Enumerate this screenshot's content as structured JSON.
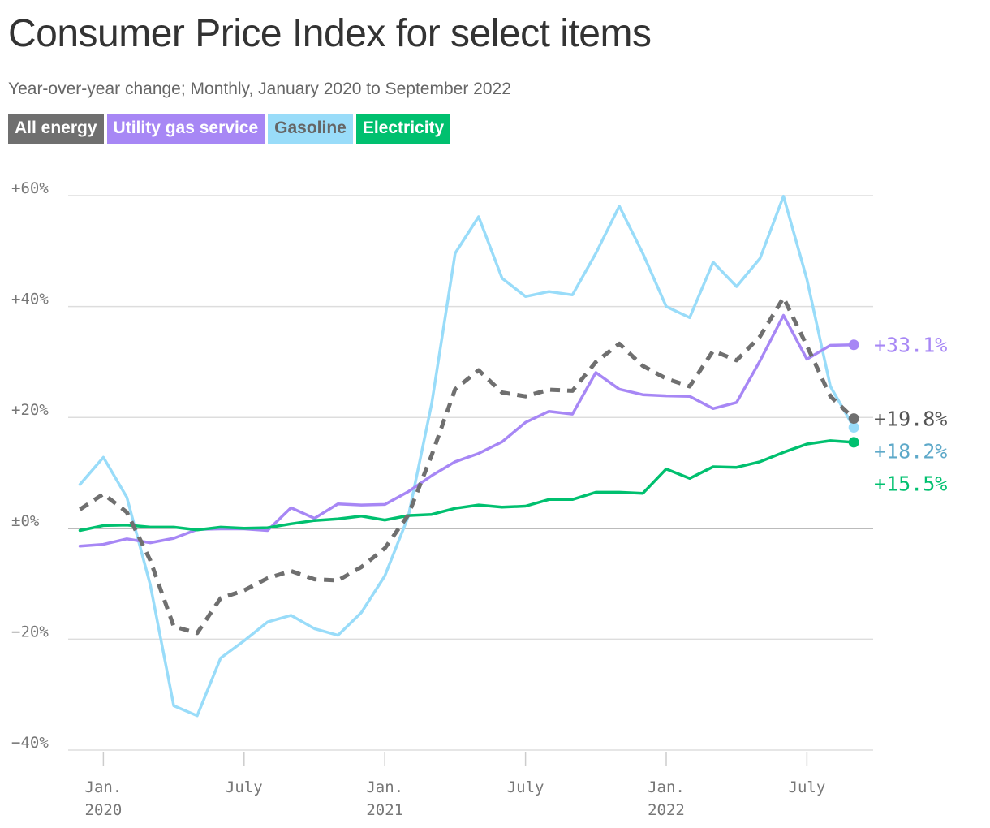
{
  "title": "Consumer Price Index for select items",
  "subtitle": "Year-over-year change; Monthly, January 2020 to September 2022",
  "legend": [
    {
      "label": "All energy",
      "bg": "#6f6f6f",
      "fg": "#ffffff"
    },
    {
      "label": "Utility gas service",
      "bg": "#a787f5",
      "fg": "#ffffff"
    },
    {
      "label": "Gasoline",
      "bg": "#99dcf9",
      "fg": "#666666"
    },
    {
      "label": "Electricity",
      "bg": "#00c06f",
      "fg": "#ffffff"
    }
  ],
  "chart_data": {
    "type": "line",
    "title": "Consumer Price Index for select items",
    "subtitle": "Year-over-year change; Monthly, January 2020 to September 2022",
    "x": [
      "2019-12",
      "2020-01",
      "2020-02",
      "2020-03",
      "2020-04",
      "2020-05",
      "2020-06",
      "2020-07",
      "2020-08",
      "2020-09",
      "2020-10",
      "2020-11",
      "2020-12",
      "2021-01",
      "2021-02",
      "2021-03",
      "2021-04",
      "2021-05",
      "2021-06",
      "2021-07",
      "2021-08",
      "2021-09",
      "2021-10",
      "2021-11",
      "2021-12",
      "2022-01",
      "2022-02",
      "2022-03",
      "2022-04",
      "2022-05",
      "2022-06",
      "2022-07",
      "2022-08",
      "2022-09"
    ],
    "x_ticks": [
      {
        "x": "2020-01",
        "line1": "Jan.",
        "line2": "2020"
      },
      {
        "x": "2020-07",
        "line1": "July",
        "line2": ""
      },
      {
        "x": "2021-01",
        "line1": "Jan.",
        "line2": "2021"
      },
      {
        "x": "2021-07",
        "line1": "July",
        "line2": ""
      },
      {
        "x": "2022-01",
        "line1": "Jan.",
        "line2": "2022"
      },
      {
        "x": "2022-07",
        "line1": "July",
        "line2": ""
      }
    ],
    "y_ticks": [
      {
        "value": 60,
        "label": "+60%"
      },
      {
        "value": 40,
        "label": "+40%"
      },
      {
        "value": 20,
        "label": "+20%"
      },
      {
        "value": 0,
        "label": "±0%"
      },
      {
        "value": -20,
        "label": "−20%"
      },
      {
        "value": -40,
        "label": "−40%"
      }
    ],
    "ylim": [
      -40,
      60
    ],
    "grid": true,
    "series": [
      {
        "name": "Gasoline",
        "color": "#99dcf9",
        "label_color": "#5ea9c9",
        "dashed": false,
        "end_label": "+18.2%",
        "values": [
          7.9,
          12.8,
          5.6,
          -10.2,
          -32.0,
          -33.8,
          -23.4,
          -20.3,
          -16.9,
          -15.7,
          -18.1,
          -19.3,
          -15.2,
          -8.6,
          2.1,
          22.5,
          49.6,
          56.2,
          45.1,
          41.8,
          42.7,
          42.1,
          49.6,
          58.1,
          49.6,
          40.0,
          38.0,
          48.0,
          43.6,
          48.7,
          59.9,
          44.9,
          25.6,
          18.2
        ]
      },
      {
        "name": "Utility gas service",
        "color": "#a787f5",
        "label_color": "#a787f5",
        "dashed": false,
        "end_label": "+33.1%",
        "values": [
          -3.2,
          -2.9,
          -1.9,
          -2.6,
          -1.8,
          -0.2,
          -0.1,
          -0.1,
          -0.4,
          3.7,
          1.8,
          4.4,
          4.2,
          4.3,
          6.6,
          9.5,
          12.0,
          13.5,
          15.6,
          19.1,
          21.1,
          20.6,
          28.1,
          25.1,
          24.1,
          23.9,
          23.8,
          21.6,
          22.7,
          30.2,
          38.4,
          30.5,
          33.0,
          33.1
        ]
      },
      {
        "name": "Electricity",
        "color": "#00c06f",
        "label_color": "#00c06f",
        "dashed": false,
        "end_label": "+15.5%",
        "values": [
          -0.4,
          0.5,
          0.6,
          0.2,
          0.2,
          -0.3,
          0.2,
          0.0,
          0.1,
          0.8,
          1.4,
          1.7,
          2.2,
          1.5,
          2.3,
          2.5,
          3.6,
          4.2,
          3.8,
          4.0,
          5.2,
          5.2,
          6.5,
          6.5,
          6.3,
          10.7,
          9.0,
          11.1,
          11.0,
          12.0,
          13.7,
          15.2,
          15.8,
          15.5
        ]
      },
      {
        "name": "All energy",
        "color": "#6f6f6f",
        "label_color": "#555555",
        "dashed": true,
        "end_label": "+19.8%",
        "values": [
          3.4,
          6.2,
          2.9,
          -5.8,
          -17.7,
          -18.9,
          -12.6,
          -11.2,
          -9.0,
          -7.7,
          -9.2,
          -9.4,
          -7.0,
          -3.6,
          2.4,
          13.2,
          25.1,
          28.5,
          24.5,
          23.8,
          25.0,
          24.8,
          30.0,
          33.3,
          29.3,
          27.0,
          25.6,
          32.0,
          30.3,
          34.6,
          41.6,
          32.9,
          23.8,
          19.8
        ]
      }
    ]
  }
}
